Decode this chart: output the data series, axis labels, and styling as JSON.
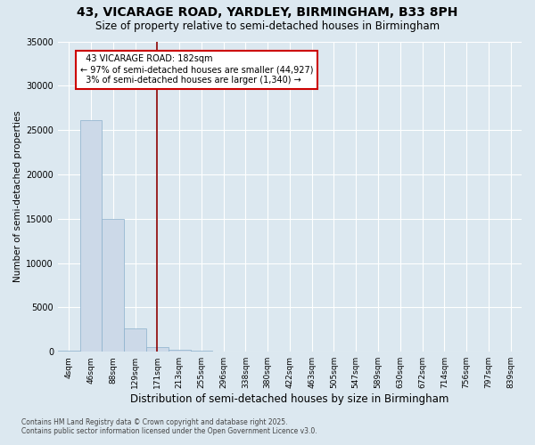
{
  "title": "43, VICARAGE ROAD, YARDLEY, BIRMINGHAM, B33 8PH",
  "subtitle": "Size of property relative to semi-detached houses in Birmingham",
  "xlabel": "Distribution of semi-detached houses by size in Birmingham",
  "ylabel": "Number of semi-detached properties",
  "bin_labels": [
    "4sqm",
    "46sqm",
    "88sqm",
    "129sqm",
    "171sqm",
    "213sqm",
    "255sqm",
    "296sqm",
    "338sqm",
    "380sqm",
    "422sqm",
    "463sqm",
    "505sqm",
    "547sqm",
    "589sqm",
    "630sqm",
    "672sqm",
    "714sqm",
    "756sqm",
    "797sqm",
    "839sqm"
  ],
  "bar_values": [
    150,
    26100,
    15000,
    2600,
    500,
    180,
    80,
    30,
    10,
    5,
    3,
    2,
    1,
    1,
    0,
    0,
    0,
    0,
    0,
    0,
    0
  ],
  "bar_color": "#ccd9e8",
  "bar_edgecolor": "#8ab0cc",
  "property_bin_index": 4,
  "property_sqm": 182,
  "pct_smaller": 97,
  "count_smaller": 44927,
  "pct_larger": 3,
  "count_larger": 1340,
  "vline_color": "#8b0000",
  "annotation_box_color": "#cc0000",
  "background_color": "#dce8f0",
  "plot_bg_color": "#dce8f0",
  "ylim": [
    0,
    35000
  ],
  "yticks": [
    0,
    5000,
    10000,
    15000,
    20000,
    25000,
    30000,
    35000
  ],
  "footer_line1": "Contains HM Land Registry data © Crown copyright and database right 2025.",
  "footer_line2": "Contains public sector information licensed under the Open Government Licence v3.0."
}
